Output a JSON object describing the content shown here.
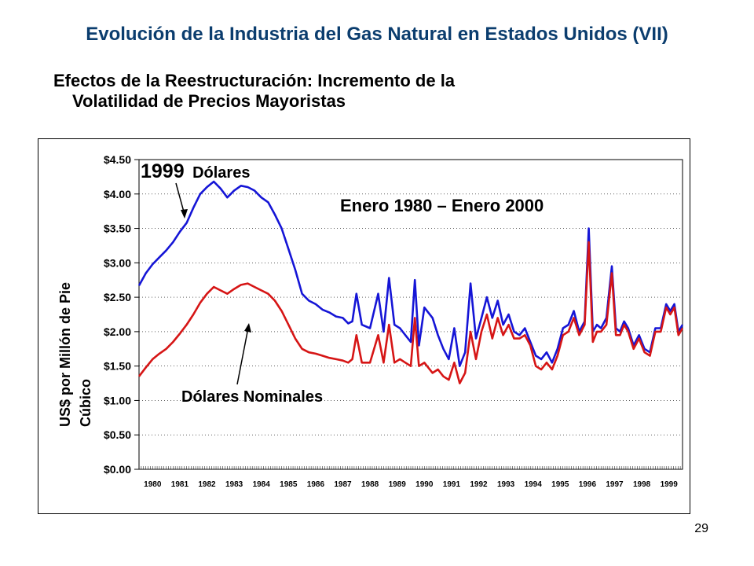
{
  "slide": {
    "title": "Evolución de la Industria del Gas Natural en Estados Unidos (VII)",
    "subtitle_line1": "Efectos de la Reestructuración: Incremento de la",
    "subtitle_line2": "Volatilidad de Precios Mayoristas",
    "page_number": "29"
  },
  "chart_data": {
    "type": "line",
    "title": "Enero 1980 – Enero 2000",
    "ylabel_line1": "US$ por Millón de Pie",
    "ylabel_line2": "Cúbico",
    "ylim": [
      0,
      4.5
    ],
    "yticks": [
      "$0.00",
      "$0.50",
      "$1.00",
      "$1.50",
      "$2.00",
      "$2.50",
      "$3.00",
      "$3.50",
      "$4.00",
      "$4.50"
    ],
    "xlim": [
      1980,
      2000
    ],
    "xticks": [
      "1980",
      "1981",
      "1982",
      "1983",
      "1984",
      "1985",
      "1986",
      "1987",
      "1988",
      "1989",
      "1990",
      "1991",
      "1992",
      "1993",
      "1994",
      "1995",
      "1996",
      "1997",
      "1998",
      "1999"
    ],
    "annotations": {
      "real_label_year": "1999",
      "real_label_unit": "Dólares",
      "nominal_label": "Dólares Nominales"
    },
    "colors": {
      "real": "#1515d6",
      "nominal": "#d61515",
      "grid": "#000000"
    },
    "series": [
      {
        "key": "real",
        "x": [
          1980.0,
          1980.25,
          1980.5,
          1980.75,
          1981.0,
          1981.25,
          1981.5,
          1981.75,
          1982.0,
          1982.25,
          1982.5,
          1982.75,
          1983.0,
          1983.25,
          1983.5,
          1983.75,
          1984.0,
          1984.25,
          1984.5,
          1984.75,
          1985.0,
          1985.25,
          1985.5,
          1985.75,
          1986.0,
          1986.25,
          1986.5,
          1986.75,
          1987.0,
          1987.25,
          1987.5,
          1987.7,
          1987.85,
          1988.0,
          1988.2,
          1988.5,
          1988.8,
          1989.0,
          1989.2,
          1989.4,
          1989.6,
          1989.8,
          1990.0,
          1990.15,
          1990.3,
          1990.5,
          1990.8,
          1991.0,
          1991.2,
          1991.4,
          1991.6,
          1991.8,
          1992.0,
          1992.2,
          1992.4,
          1992.6,
          1992.8,
          1993.0,
          1993.2,
          1993.4,
          1993.6,
          1993.8,
          1994.0,
          1994.2,
          1994.4,
          1994.6,
          1994.8,
          1995.0,
          1995.2,
          1995.4,
          1995.6,
          1995.8,
          1996.0,
          1996.2,
          1996.4,
          1996.55,
          1996.7,
          1996.85,
          1997.0,
          1997.2,
          1997.4,
          1997.55,
          1997.7,
          1997.85,
          1998.0,
          1998.2,
          1998.4,
          1998.6,
          1998.8,
          1999.0,
          1999.2,
          1999.4,
          1999.55,
          1999.7,
          1999.85,
          2000.0
        ],
        "values": [
          2.67,
          2.85,
          2.98,
          3.08,
          3.18,
          3.3,
          3.45,
          3.58,
          3.8,
          4.0,
          4.1,
          4.18,
          4.08,
          3.95,
          4.05,
          4.12,
          4.1,
          4.05,
          3.95,
          3.88,
          3.7,
          3.5,
          3.2,
          2.9,
          2.55,
          2.45,
          2.4,
          2.32,
          2.28,
          2.22,
          2.2,
          2.12,
          2.15,
          2.55,
          2.1,
          2.05,
          2.55,
          2.0,
          2.78,
          2.1,
          2.05,
          1.95,
          1.85,
          2.75,
          1.8,
          2.35,
          2.2,
          1.95,
          1.75,
          1.6,
          2.05,
          1.5,
          1.7,
          2.7,
          1.9,
          2.2,
          2.5,
          2.2,
          2.45,
          2.1,
          2.25,
          2.0,
          1.95,
          2.05,
          1.85,
          1.65,
          1.6,
          1.7,
          1.55,
          1.75,
          2.05,
          2.1,
          2.3,
          2.0,
          2.15,
          3.5,
          2.0,
          2.1,
          2.05,
          2.2,
          2.95,
          2.05,
          2.0,
          2.15,
          2.05,
          1.8,
          1.95,
          1.75,
          1.7,
          2.05,
          2.05,
          2.4,
          2.3,
          2.4,
          2.0,
          2.1
        ]
      },
      {
        "key": "nominal",
        "x": [
          1980.0,
          1980.25,
          1980.5,
          1980.75,
          1981.0,
          1981.25,
          1981.5,
          1981.75,
          1982.0,
          1982.25,
          1982.5,
          1982.75,
          1983.0,
          1983.25,
          1983.5,
          1983.75,
          1984.0,
          1984.25,
          1984.5,
          1984.75,
          1985.0,
          1985.25,
          1985.5,
          1985.75,
          1986.0,
          1986.25,
          1986.5,
          1986.75,
          1987.0,
          1987.25,
          1987.5,
          1987.7,
          1987.85,
          1988.0,
          1988.2,
          1988.5,
          1988.8,
          1989.0,
          1989.2,
          1989.4,
          1989.6,
          1989.8,
          1990.0,
          1990.15,
          1990.3,
          1990.5,
          1990.8,
          1991.0,
          1991.2,
          1991.4,
          1991.6,
          1991.8,
          1992.0,
          1992.2,
          1992.4,
          1992.6,
          1992.8,
          1993.0,
          1993.2,
          1993.4,
          1993.6,
          1993.8,
          1994.0,
          1994.2,
          1994.4,
          1994.6,
          1994.8,
          1995.0,
          1995.2,
          1995.4,
          1995.6,
          1995.8,
          1996.0,
          1996.2,
          1996.4,
          1996.55,
          1996.7,
          1996.85,
          1997.0,
          1997.2,
          1997.4,
          1997.55,
          1997.7,
          1997.85,
          1998.0,
          1998.2,
          1998.4,
          1998.6,
          1998.8,
          1999.0,
          1999.2,
          1999.4,
          1999.55,
          1999.7,
          1999.85,
          2000.0
        ],
        "values": [
          1.35,
          1.48,
          1.6,
          1.68,
          1.75,
          1.85,
          1.97,
          2.1,
          2.25,
          2.42,
          2.55,
          2.65,
          2.6,
          2.55,
          2.62,
          2.68,
          2.7,
          2.65,
          2.6,
          2.55,
          2.45,
          2.3,
          2.1,
          1.9,
          1.75,
          1.7,
          1.68,
          1.65,
          1.62,
          1.6,
          1.58,
          1.55,
          1.6,
          1.95,
          1.55,
          1.55,
          1.95,
          1.55,
          2.1,
          1.55,
          1.6,
          1.55,
          1.5,
          2.2,
          1.5,
          1.55,
          1.4,
          1.45,
          1.35,
          1.3,
          1.55,
          1.25,
          1.4,
          2.0,
          1.6,
          2.0,
          2.25,
          1.9,
          2.2,
          1.95,
          2.1,
          1.9,
          1.9,
          1.95,
          1.8,
          1.5,
          1.45,
          1.55,
          1.45,
          1.65,
          1.95,
          2.0,
          2.2,
          1.95,
          2.1,
          3.3,
          1.85,
          2.0,
          2.0,
          2.1,
          2.85,
          1.95,
          1.95,
          2.1,
          2.0,
          1.75,
          1.9,
          1.7,
          1.65,
          2.0,
          2.0,
          2.35,
          2.25,
          2.35,
          1.95,
          2.05
        ]
      }
    ]
  }
}
